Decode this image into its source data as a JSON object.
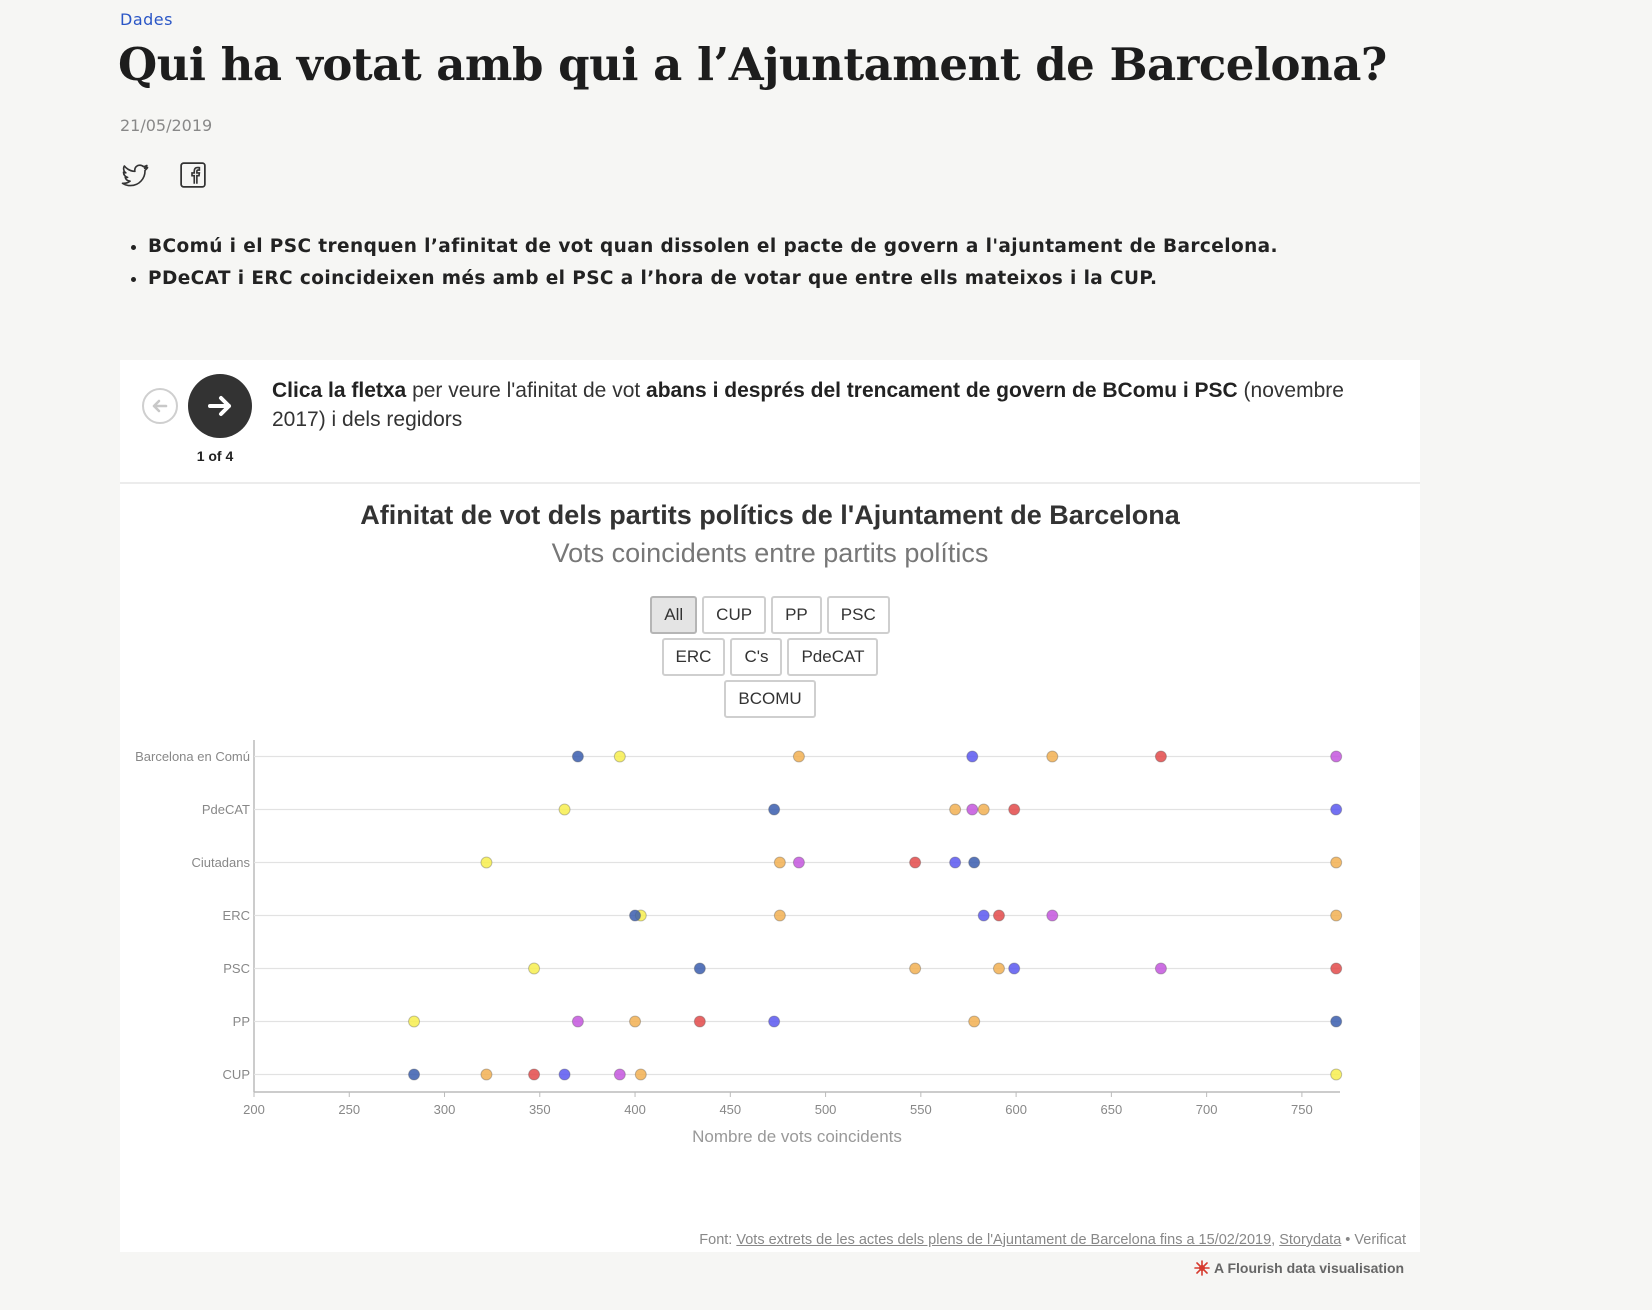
{
  "article": {
    "section": "Dades",
    "title": "Qui ha votat amb qui a l’Ajuntament de Barcelona?",
    "date": "21/05/2019",
    "share": {
      "twitter_icon": "twitter-icon",
      "facebook_icon": "facebook-icon"
    },
    "bullets": [
      "BComú i el PSC trenquen l’afinitat de vot quan dissolen el pacte de govern a l'ajuntament de Barcelona.",
      "PDeCAT i ERC coincideixen més amb el PSC a l’hora de votar que entre ells mateixos i la CUP."
    ]
  },
  "story": {
    "step": "1 of 4",
    "caption": {
      "p1": "Clica la fletxa",
      "p2": " per veure l'afinitat de vot ",
      "p3": "abans i després del trencament de govern de BComu i PSC",
      "p4": " (novembre 2017) i dels regidors"
    }
  },
  "filters": {
    "rows": [
      [
        "All",
        "CUP",
        "PP",
        "PSC"
      ],
      [
        "ERC",
        "C's",
        "PdeCAT"
      ],
      [
        "BCOMU"
      ]
    ],
    "active": "All"
  },
  "colors": {
    "CUP": "#f7ef4f",
    "PP": "#3a5dae",
    "PSC": "#e34a4a",
    "ERC": "#f2b052",
    "C's": "#f59a3a",
    "PdeCAT": "#5b58f0",
    "BCOMU": "#c456de",
    "Barcelona en Comú": "#c456de",
    "Ciutadans": "#f2b052"
  },
  "chart_data": {
    "type": "scatter",
    "title": "Afinitat de vot dels partits polítics de l'Ajuntament de Barcelona",
    "subtitle": "Vots coincidents entre partits polítics",
    "xlabel": "Nombre de vots coincidents",
    "ylabel": "",
    "xlim": [
      200,
      770
    ],
    "xticks": [
      200,
      250,
      300,
      350,
      400,
      450,
      500,
      550,
      600,
      650,
      700,
      750
    ],
    "rows": [
      {
        "name": "Barcelona en Comú",
        "points": [
          {
            "party": "PP",
            "value": 370
          },
          {
            "party": "CUP",
            "value": 392
          },
          {
            "party": "Ciutadans",
            "value": 486
          },
          {
            "party": "PdeCAT",
            "value": 577
          },
          {
            "party": "ERC",
            "value": 619
          },
          {
            "party": "PSC",
            "value": 676
          },
          {
            "party": "Barcelona en Comú",
            "value": 768
          }
        ]
      },
      {
        "name": "PdeCAT",
        "points": [
          {
            "party": "CUP",
            "value": 363
          },
          {
            "party": "PP",
            "value": 473
          },
          {
            "party": "Ciutadans",
            "value": 568
          },
          {
            "party": "Barcelona en Comú",
            "value": 577
          },
          {
            "party": "ERC",
            "value": 583
          },
          {
            "party": "PSC",
            "value": 599
          },
          {
            "party": "PdeCAT",
            "value": 768
          }
        ]
      },
      {
        "name": "Ciutadans",
        "points": [
          {
            "party": "CUP",
            "value": 322
          },
          {
            "party": "ERC",
            "value": 476
          },
          {
            "party": "Barcelona en Comú",
            "value": 486
          },
          {
            "party": "PSC",
            "value": 547
          },
          {
            "party": "PdeCAT",
            "value": 568
          },
          {
            "party": "PP",
            "value": 578
          },
          {
            "party": "Ciutadans",
            "value": 768
          }
        ]
      },
      {
        "name": "ERC",
        "points": [
          {
            "party": "CUP",
            "value": 403
          },
          {
            "party": "PP",
            "value": 400
          },
          {
            "party": "Ciutadans",
            "value": 476
          },
          {
            "party": "PdeCAT",
            "value": 583
          },
          {
            "party": "PSC",
            "value": 591
          },
          {
            "party": "Barcelona en Comú",
            "value": 619
          },
          {
            "party": "ERC",
            "value": 768
          }
        ]
      },
      {
        "name": "PSC",
        "points": [
          {
            "party": "CUP",
            "value": 347
          },
          {
            "party": "PP",
            "value": 434
          },
          {
            "party": "Ciutadans",
            "value": 547
          },
          {
            "party": "ERC",
            "value": 591
          },
          {
            "party": "PdeCAT",
            "value": 599
          },
          {
            "party": "Barcelona en Comú",
            "value": 676
          },
          {
            "party": "PSC",
            "value": 768
          }
        ]
      },
      {
        "name": "PP",
        "points": [
          {
            "party": "CUP",
            "value": 284
          },
          {
            "party": "Barcelona en Comú",
            "value": 370
          },
          {
            "party": "ERC",
            "value": 400
          },
          {
            "party": "PSC",
            "value": 434
          },
          {
            "party": "PdeCAT",
            "value": 473
          },
          {
            "party": "Ciutadans",
            "value": 578
          },
          {
            "party": "PP",
            "value": 768
          }
        ]
      },
      {
        "name": "CUP",
        "points": [
          {
            "party": "PP",
            "value": 284
          },
          {
            "party": "Ciutadans",
            "value": 322
          },
          {
            "party": "PSC",
            "value": 347
          },
          {
            "party": "PdeCAT",
            "value": 363
          },
          {
            "party": "Barcelona en Comú",
            "value": 392
          },
          {
            "party": "ERC",
            "value": 403
          },
          {
            "party": "CUP",
            "value": 768
          }
        ]
      }
    ]
  },
  "source": {
    "prefix": "Font: ",
    "link1": "Vots extrets de les actes dels plens de l'Ajuntament de Barcelona fins a 15/02/2019",
    "sep": ", ",
    "link2": "Storydata",
    "suffix": " • Verificat"
  },
  "credit": "A Flourish data visualisation"
}
